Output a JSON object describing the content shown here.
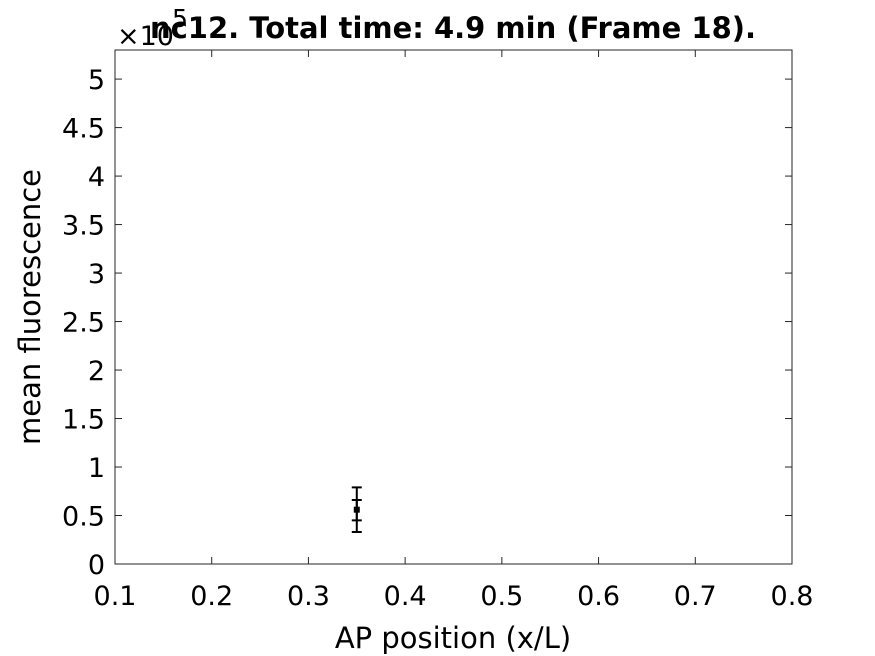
{
  "chart_data": {
    "type": "scatter",
    "title": "nc12. Total time: 4.9 min (Frame 18).",
    "xlabel": "AP position (x/L)",
    "ylabel": "mean fluorescence",
    "y_multiplier_base": "×10",
    "y_multiplier_exponent": "5",
    "xlim": [
      0.1,
      0.8
    ],
    "ylim": [
      0,
      5.3
    ],
    "x_ticks": [
      0.1,
      0.2,
      0.3,
      0.4,
      0.5,
      0.6,
      0.7,
      0.8
    ],
    "x_tick_labels": [
      "0.1",
      "0.2",
      "0.3",
      "0.4",
      "0.5",
      "0.6",
      "0.7",
      "0.8"
    ],
    "y_ticks": [
      0,
      0.5,
      1,
      1.5,
      2,
      2.5,
      3,
      3.5,
      4,
      4.5,
      5
    ],
    "y_tick_labels": [
      "0",
      "0.5",
      "1",
      "1.5",
      "2",
      "2.5",
      "3",
      "3.5",
      "4",
      "4.5",
      "5"
    ],
    "grid": false,
    "legend": "none",
    "series": [
      {
        "x": [
          0.35
        ],
        "y": [
          0.56
        ],
        "errors": [
          {
            "lower": 0.33,
            "upper": 0.79
          },
          {
            "lower": 0.45,
            "upper": 0.66
          }
        ],
        "color": "#000000"
      }
    ]
  }
}
